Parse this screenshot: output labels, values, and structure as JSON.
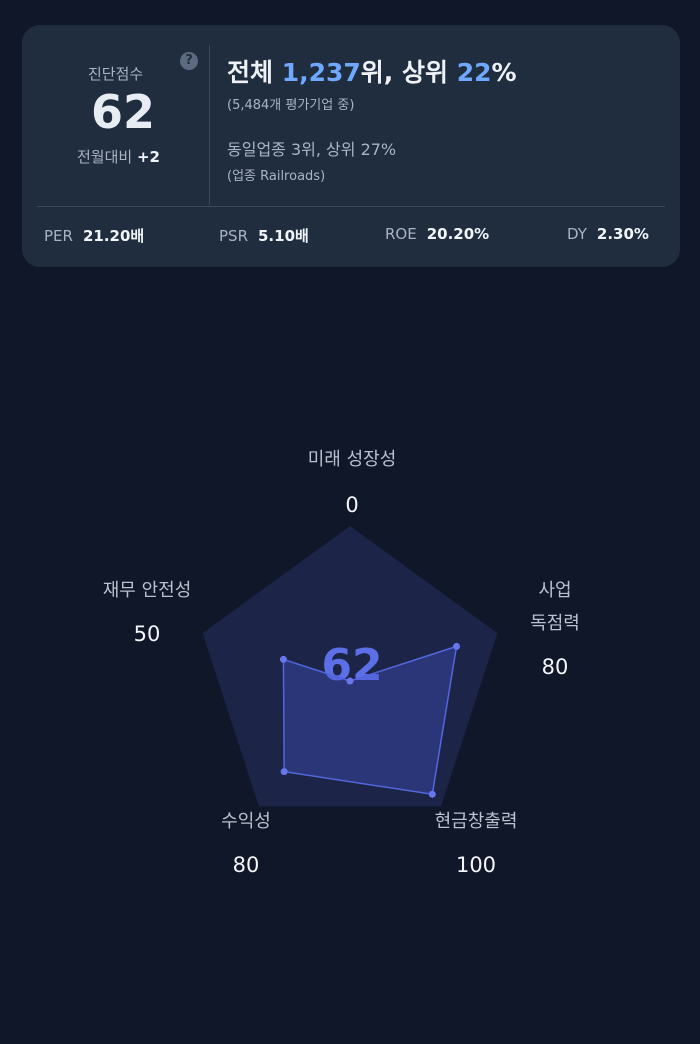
{
  "summary": {
    "score_label": "진단점수",
    "score": 62,
    "help": "?",
    "change_label": "전월대비",
    "change": "+2",
    "overall": {
      "prefix": "전체 ",
      "rank": "1,237",
      "middle": "위, 상위 ",
      "percent": "22",
      "suffix": "%"
    },
    "overall_note": "(5,484개 평가기업 중)",
    "industry": "동일업종 3위, 상위 27%",
    "industry_note": "(업종 Railroads)",
    "metrics": [
      {
        "label": "PER",
        "value": "21.20배"
      },
      {
        "label": "PSR",
        "value": "5.10배"
      },
      {
        "label": "ROE",
        "value": "20.20%"
      },
      {
        "label": "DY",
        "value": "2.30%"
      }
    ]
  },
  "radar": {
    "center_value": 62,
    "rlim": [
      0,
      100
    ],
    "axes": [
      {
        "label_lines": [
          "미래 성장성"
        ],
        "value": 0
      },
      {
        "label_lines": [
          "사업",
          "독점력"
        ],
        "value": 80
      },
      {
        "label_lines": [
          "현금창출력"
        ],
        "value": 100
      },
      {
        "label_lines": [
          "수익성"
        ],
        "value": 80
      },
      {
        "label_lines": [
          "재무 안전성"
        ],
        "value": 50
      }
    ]
  }
}
